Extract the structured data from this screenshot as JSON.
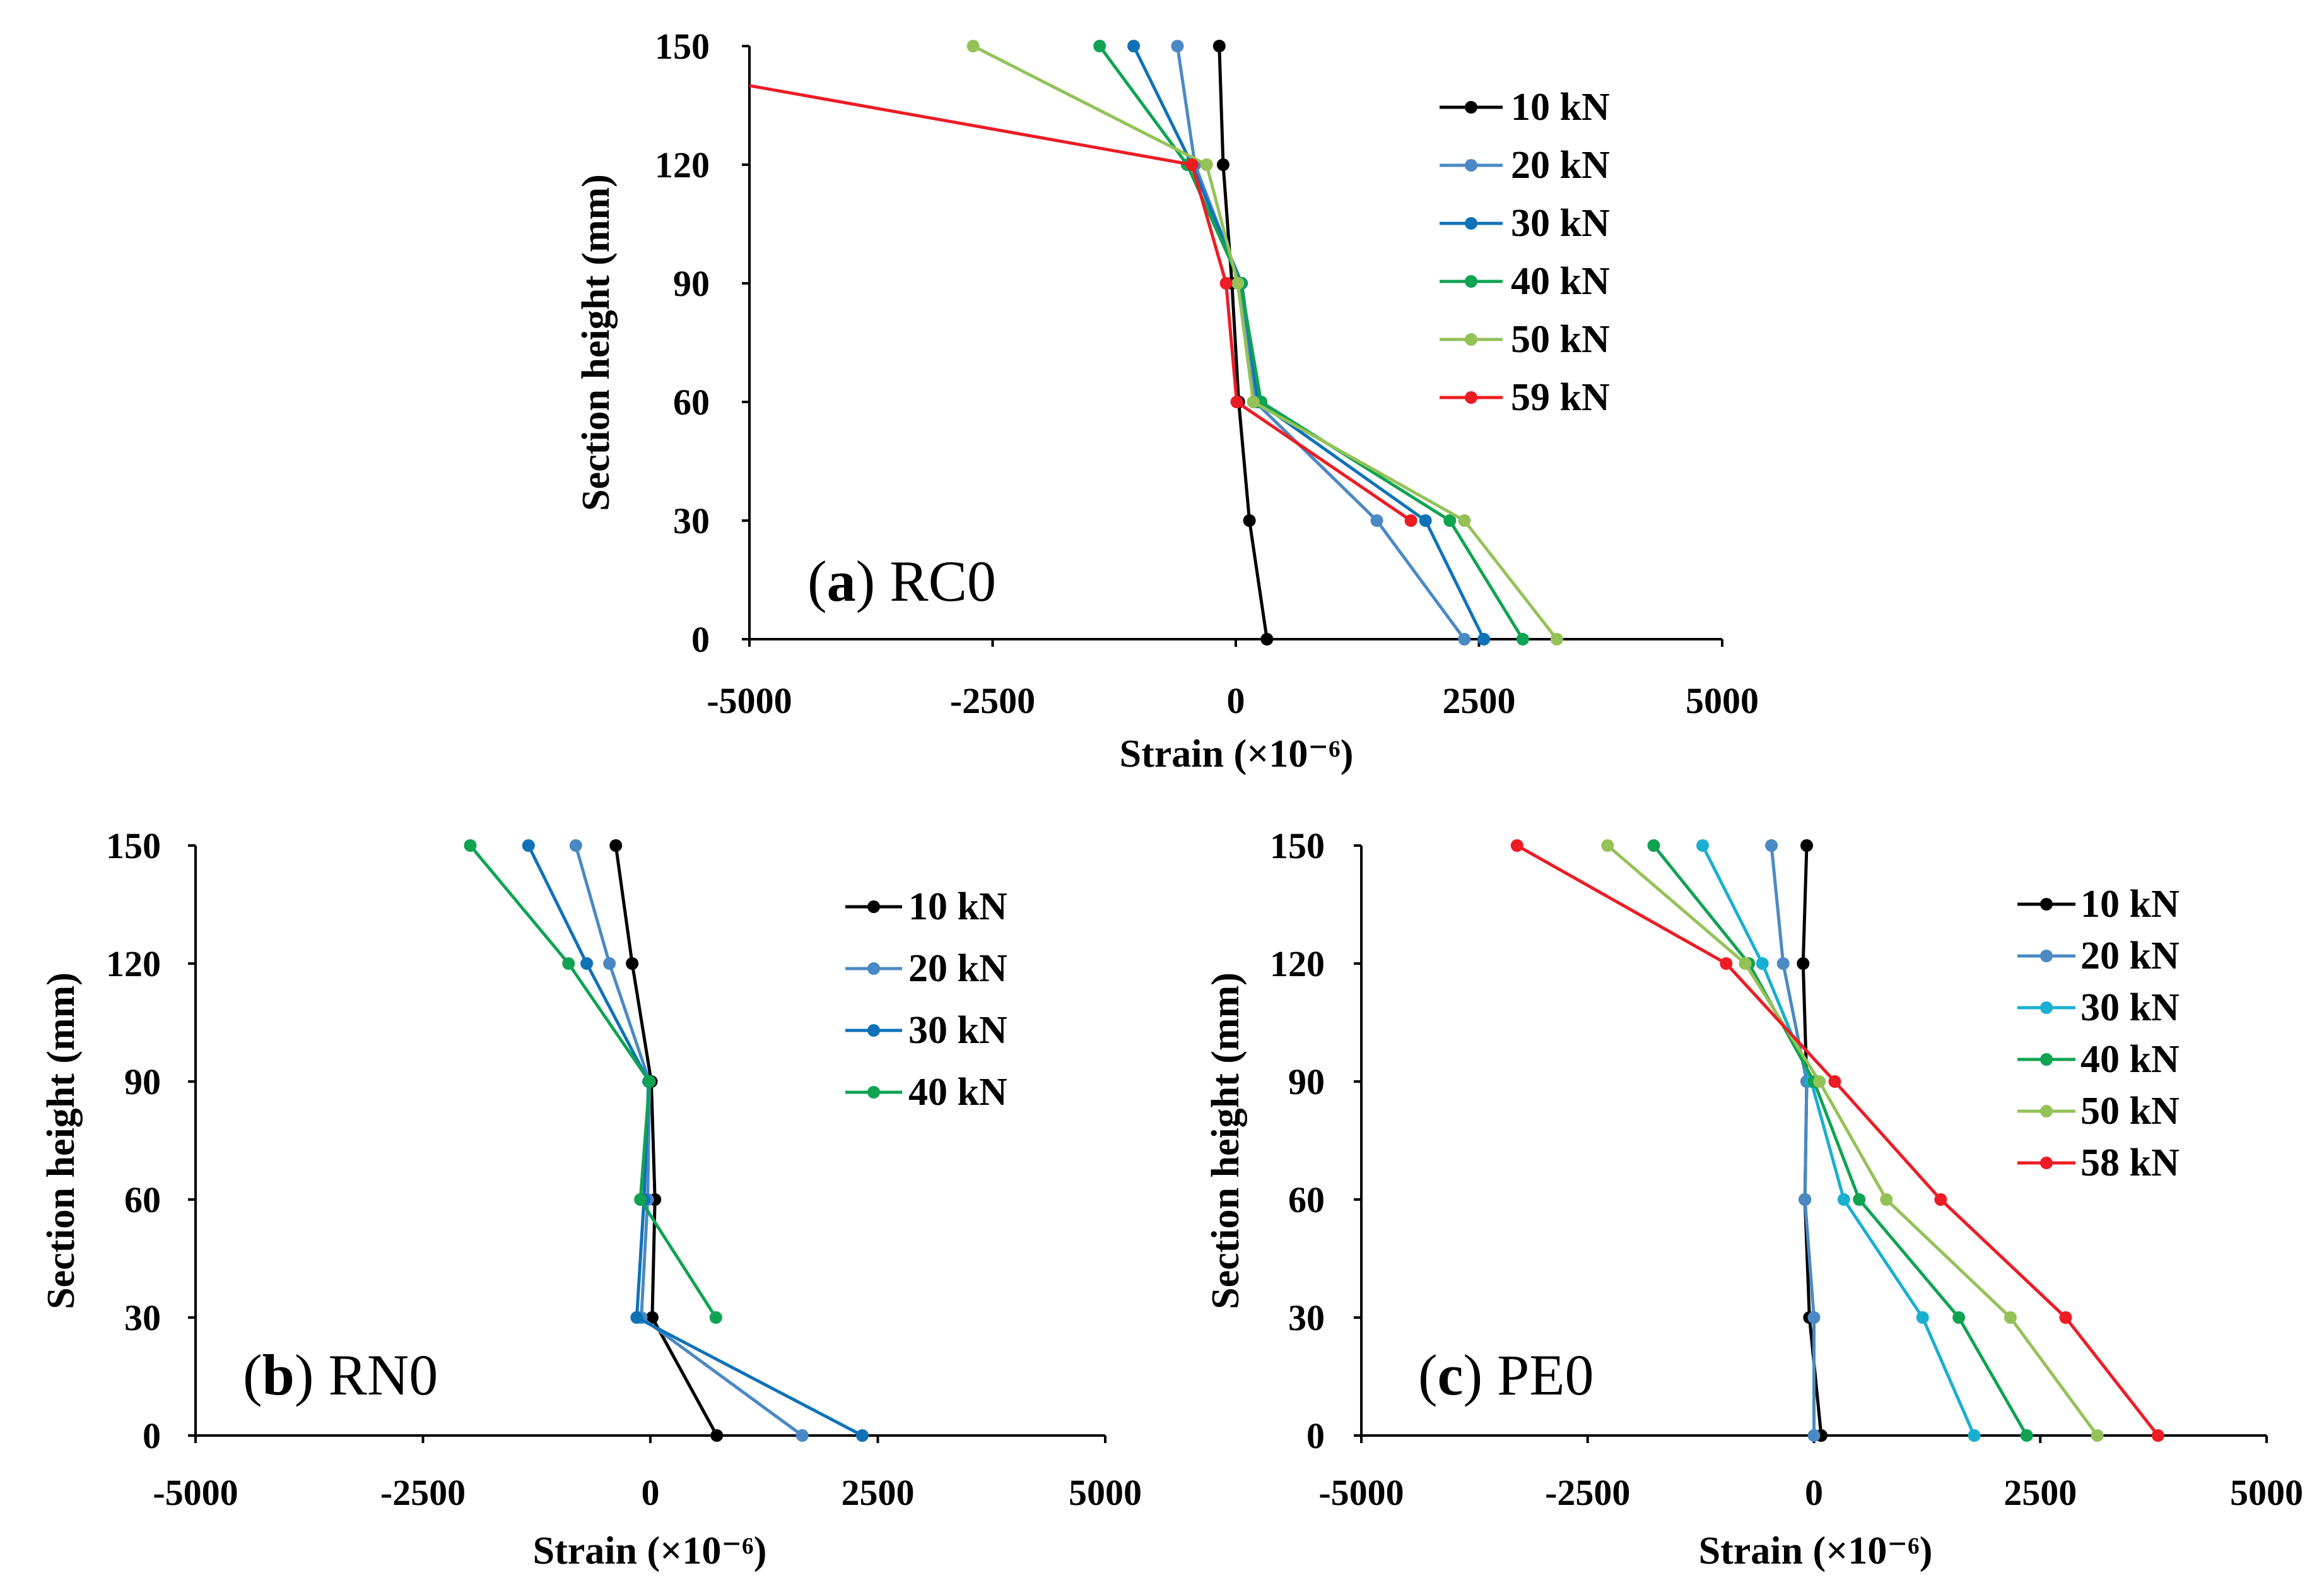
{
  "figure": {
    "panels": [
      {
        "letter": "a",
        "name": " RC0"
      },
      {
        "letter": "b",
        "name": " RN0"
      },
      {
        "letter": "c",
        "name": " PE0"
      }
    ]
  },
  "chart_data": [
    {
      "type": "line",
      "panel_label": "(a) RC0",
      "xlabel": "Strain (×10⁻⁶)",
      "ylabel": "Section height (mm)",
      "xlim": [
        -5000,
        5000
      ],
      "ylim": [
        0,
        150
      ],
      "xticks": [
        -5000,
        -2500,
        0,
        2500,
        5000
      ],
      "yticks": [
        0,
        30,
        60,
        90,
        120,
        150
      ],
      "grid": false,
      "legend_position": "top-right",
      "series": [
        {
          "name": "10 kN",
          "color": "#000000",
          "points": [
            [
              320,
              0
            ],
            [
              140,
              30
            ],
            [
              30,
              60
            ],
            [
              -40,
              90
            ],
            [
              -130,
              120
            ],
            [
              -170,
              150
            ]
          ]
        },
        {
          "name": "20 kN",
          "color": "#4A89C4",
          "points": [
            [
              2350,
              0
            ],
            [
              1450,
              30
            ],
            [
              200,
              60
            ],
            [
              50,
              90
            ],
            [
              -420,
              120
            ],
            [
              -600,
              150
            ]
          ]
        },
        {
          "name": "30 kN",
          "color": "#0F72B8",
          "points": [
            [
              2550,
              0
            ],
            [
              1950,
              30
            ],
            [
              230,
              60
            ],
            [
              60,
              90
            ],
            [
              -450,
              120
            ],
            [
              -1050,
              150
            ]
          ]
        },
        {
          "name": "40 kN",
          "color": "#0FA352",
          "points": [
            [
              2950,
              0
            ],
            [
              2200,
              30
            ],
            [
              260,
              60
            ],
            [
              50,
              90
            ],
            [
              -500,
              120
            ],
            [
              -1400,
              150
            ]
          ]
        },
        {
          "name": "50 kN",
          "color": "#94C257",
          "points": [
            [
              3300,
              0
            ],
            [
              2350,
              30
            ],
            [
              180,
              60
            ],
            [
              20,
              90
            ],
            [
              -300,
              120
            ],
            [
              -2700,
              150
            ]
          ]
        },
        {
          "name": "59 kN",
          "color": "#ED1C24",
          "points": [
            [
              1800,
              30
            ],
            [
              10,
              60
            ],
            [
              -100,
              90
            ],
            [
              -450,
              120
            ],
            [
              -5000,
              140
            ]
          ]
        }
      ]
    },
    {
      "type": "line",
      "panel_label": "(b) RN0",
      "xlabel": "Strain (×10⁻⁶)",
      "ylabel": "Section height (mm)",
      "xlim": [
        -5000,
        5000
      ],
      "ylim": [
        0,
        150
      ],
      "xticks": [
        -5000,
        -2500,
        0,
        2500,
        5000
      ],
      "yticks": [
        0,
        30,
        60,
        90,
        120,
        150
      ],
      "grid": false,
      "legend_position": "top-right",
      "series": [
        {
          "name": "10 kN",
          "color": "#000000",
          "points": [
            [
              730,
              0
            ],
            [
              20,
              30
            ],
            [
              50,
              60
            ],
            [
              10,
              90
            ],
            [
              -200,
              120
            ],
            [
              -380,
              150
            ]
          ]
        },
        {
          "name": "20 kN",
          "color": "#4A89C4",
          "points": [
            [
              1670,
              0
            ],
            [
              -100,
              30
            ],
            [
              -30,
              60
            ],
            [
              -10,
              90
            ],
            [
              -450,
              120
            ],
            [
              -820,
              150
            ]
          ]
        },
        {
          "name": "30 kN",
          "color": "#0F72B8",
          "points": [
            [
              2330,
              0
            ],
            [
              -150,
              30
            ],
            [
              -70,
              60
            ],
            [
              -20,
              90
            ],
            [
              -700,
              120
            ],
            [
              -1340,
              150
            ]
          ]
        },
        {
          "name": "40 kN",
          "color": "#0FA352",
          "points": [
            [
              720,
              30
            ],
            [
              -110,
              60
            ],
            [
              -10,
              90
            ],
            [
              -900,
              120
            ],
            [
              -1980,
              150
            ]
          ]
        }
      ]
    },
    {
      "type": "line",
      "panel_label": "(c) PE0",
      "xlabel": "Strain (×10⁻⁶)",
      "ylabel": "Section height (mm)",
      "xlim": [
        -5000,
        5000
      ],
      "ylim": [
        0,
        150
      ],
      "xticks": [
        -5000,
        -2500,
        0,
        2500,
        5000
      ],
      "yticks": [
        0,
        30,
        60,
        90,
        120,
        150
      ],
      "grid": false,
      "legend_position": "top-right",
      "series": [
        {
          "name": "10 kN",
          "color": "#000000",
          "points": [
            [
              80,
              0
            ],
            [
              -50,
              30
            ],
            [
              -100,
              60
            ],
            [
              -80,
              90
            ],
            [
              -120,
              120
            ],
            [
              -80,
              150
            ]
          ]
        },
        {
          "name": "20 kN",
          "color": "#4A89C4",
          "points": [
            [
              0,
              0
            ],
            [
              0,
              30
            ],
            [
              -100,
              60
            ],
            [
              -80,
              90
            ],
            [
              -340,
              120
            ],
            [
              -470,
              150
            ]
          ]
        },
        {
          "name": "30 kN",
          "color": "#1AAFD0",
          "points": [
            [
              1770,
              0
            ],
            [
              1200,
              30
            ],
            [
              330,
              60
            ],
            [
              -30,
              90
            ],
            [
              -570,
              120
            ],
            [
              -1230,
              150
            ]
          ]
        },
        {
          "name": "40 kN",
          "color": "#0FA352",
          "points": [
            [
              2350,
              0
            ],
            [
              1600,
              30
            ],
            [
              500,
              60
            ],
            [
              0,
              90
            ],
            [
              -720,
              120
            ],
            [
              -1770,
              150
            ]
          ]
        },
        {
          "name": "50 kN",
          "color": "#94C257",
          "points": [
            [
              3130,
              0
            ],
            [
              2170,
              30
            ],
            [
              800,
              60
            ],
            [
              60,
              90
            ],
            [
              -760,
              120
            ],
            [
              -2280,
              150
            ]
          ]
        },
        {
          "name": "58 kN",
          "color": "#ED1C24",
          "points": [
            [
              3800,
              0
            ],
            [
              2780,
              30
            ],
            [
              1400,
              60
            ],
            [
              230,
              90
            ],
            [
              -970,
              120
            ],
            [
              -3280,
              150
            ]
          ]
        }
      ]
    }
  ]
}
